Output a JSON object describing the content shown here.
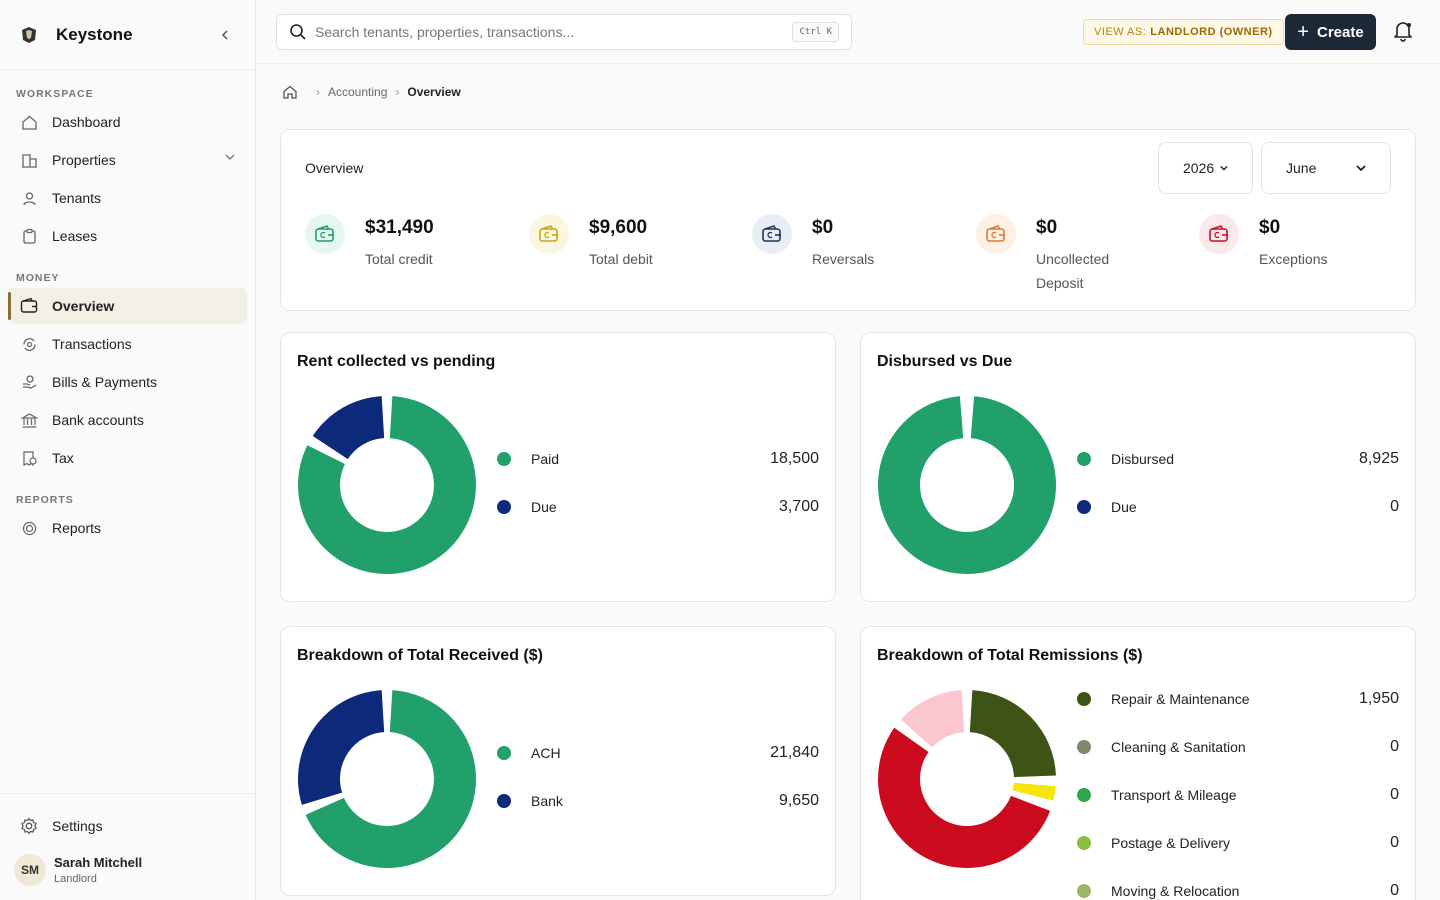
{
  "brand": {
    "name": "Keystone"
  },
  "sidebar": {
    "sections": {
      "workspace": "WORKSPACE",
      "money": "MONEY",
      "reports": "REPORTS"
    },
    "items": {
      "dashboard": "Dashboard",
      "properties": "Properties",
      "tenants": "Tenants",
      "leases": "Leases",
      "overview": "Overview",
      "transactions": "Transactions",
      "bills": "Bills & Payments",
      "bank": "Bank accounts",
      "tax": "Tax",
      "reports": "Reports",
      "settings": "Settings"
    },
    "user": {
      "initials": "SM",
      "name": "Sarah Mitchell",
      "role": "Landlord"
    }
  },
  "topbar": {
    "search_placeholder": "Search tenants, properties, transactions...",
    "shortcut": "Ctrl K",
    "view_as_label": "VIEW AS:",
    "view_as_value": "LANDLORD (OWNER)",
    "create_label": "Create"
  },
  "breadcrumb": {
    "parent": "Accounting",
    "current": "Overview"
  },
  "overview": {
    "title": "Overview",
    "year": "2026",
    "month": "June",
    "stats": [
      {
        "value": "$31,490",
        "label": "Total credit",
        "color": "#1a9e6a",
        "bg": "#e8f6f0"
      },
      {
        "value": "$9,600",
        "label": "Total debit",
        "color": "#c9a50f",
        "bg": "#fbf6e0"
      },
      {
        "value": "$0",
        "label": "Reversals",
        "color": "#1d3557",
        "bg": "#e9eef6"
      },
      {
        "value": "$0",
        "label": "Uncollected Deposit",
        "color": "#e07b2a",
        "bg": "#fdf0e4"
      },
      {
        "value": "$0",
        "label": "Exceptions",
        "color": "#c8102e",
        "bg": "#fbe8ea"
      }
    ]
  },
  "charts": [
    {
      "title": "Rent collected vs pending",
      "chart_data": {
        "type": "pie",
        "categories": [
          "Paid",
          "Due"
        ],
        "values": [
          18500,
          3700
        ],
        "display": [
          "18,500",
          "3,700"
        ],
        "colors": [
          "#22a06b",
          "#0d2a7a"
        ]
      }
    },
    {
      "title": "Disbursed vs Due",
      "chart_data": {
        "type": "pie",
        "categories": [
          "Disbursed",
          "Due"
        ],
        "values": [
          8925,
          0
        ],
        "display": [
          "8,925",
          "0"
        ],
        "colors": [
          "#22a06b",
          "#0d2a7a"
        ]
      }
    },
    {
      "title": "Breakdown of Total Received ($)",
      "chart_data": {
        "type": "pie",
        "categories": [
          "ACH",
          "Bank"
        ],
        "values": [
          21840,
          9650
        ],
        "display": [
          "21,840",
          "9,650"
        ],
        "colors": [
          "#22a06b",
          "#0d2a7a"
        ]
      }
    },
    {
      "title": "Breakdown of Total Remissions ($)",
      "chart_data": {
        "type": "pie",
        "categories": [
          "Repair & Maintenance",
          "Cleaning & Sanitation",
          "Transport & Mileage",
          "Postage & Delivery",
          "Moving & Relocation"
        ],
        "values": [
          1950,
          0,
          0,
          0,
          0
        ],
        "display": [
          "1,950",
          "0",
          "0",
          "0",
          "0"
        ],
        "colors": [
          "#3d5416",
          "#7d8b6c",
          "#2fa64c",
          "#8cbf3f",
          "#9db56a"
        ],
        "extra_segments": [
          {
            "value": 350,
            "color": "#f5e50a"
          },
          {
            "value": 4300,
            "color": "#cc0a1e"
          },
          {
            "value": 1100,
            "color": "#fbc6cd"
          }
        ]
      }
    }
  ]
}
